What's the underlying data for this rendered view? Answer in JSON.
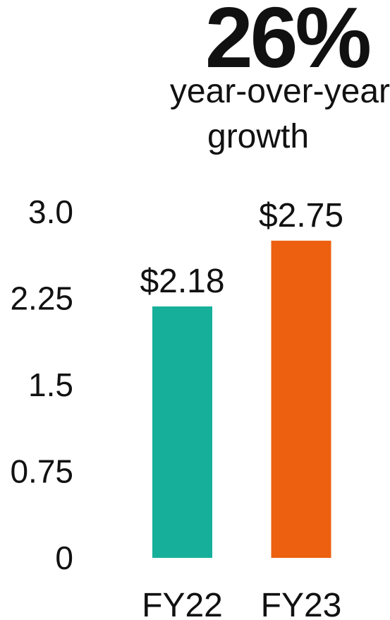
{
  "headline": {
    "value": "26%",
    "line1": "year-over-year",
    "line2": "growth"
  },
  "chart_data": {
    "type": "bar",
    "categories": [
      "FY22",
      "FY23"
    ],
    "values": [
      2.18,
      2.75
    ],
    "data_labels": [
      "$2.18",
      "$2.75"
    ],
    "colors": [
      "#16B09A",
      "#EC600F"
    ],
    "yticks": [
      "0",
      "0.75",
      "1.5",
      "2.25",
      "3.0"
    ],
    "ytick_values": [
      0,
      0.75,
      1.5,
      2.25,
      3.0
    ],
    "ylim": [
      0,
      3.0
    ],
    "grid": false,
    "legend": "none"
  }
}
